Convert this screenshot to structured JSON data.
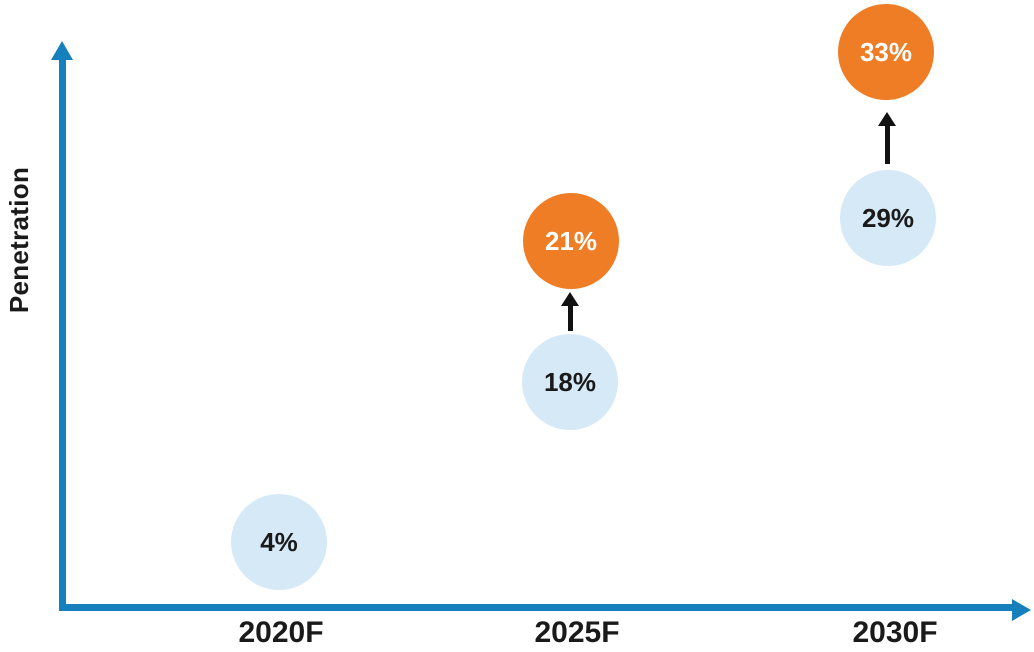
{
  "colors": {
    "axis_blue": "#1580BC",
    "bubble_baseline_light_blue": "#D6E9F7",
    "bubble_upside_orange": "#EF7D26",
    "increase_arrow_black": "#111111",
    "text_dark": "#1A1A1A",
    "text_on_orange": "#FFFFFF",
    "background": "#FFFFFF"
  },
  "chart_data": {
    "type": "scatter",
    "subtype": "bubble-timeline",
    "title": "",
    "xlabel": "",
    "ylabel": "Penetration",
    "categories": [
      "2020F",
      "2025F",
      "2030F"
    ],
    "unit": "%",
    "grid": false,
    "legend": null,
    "axis_arrows": true,
    "series": [
      {
        "name": "baseline",
        "color": "#D6E9F7",
        "values": [
          4,
          18,
          29
        ]
      },
      {
        "name": "upside",
        "color": "#EF7D26",
        "values": [
          null,
          21,
          33
        ]
      }
    ],
    "bubbles": [
      {
        "label": "4%",
        "value": 4,
        "category": "2020F",
        "series": "baseline"
      },
      {
        "label": "18%",
        "value": 18,
        "category": "2025F",
        "series": "baseline"
      },
      {
        "label": "21%",
        "value": 21,
        "category": "2025F",
        "series": "upside"
      },
      {
        "label": "29%",
        "value": 29,
        "category": "2030F",
        "series": "baseline"
      },
      {
        "label": "33%",
        "value": 33,
        "category": "2030F",
        "series": "upside"
      }
    ],
    "annotations": [
      {
        "type": "arrow-up",
        "category": "2025F",
        "from_value": 18,
        "to_value": 21
      },
      {
        "type": "arrow-up",
        "category": "2030F",
        "from_value": 29,
        "to_value": 33
      }
    ]
  }
}
